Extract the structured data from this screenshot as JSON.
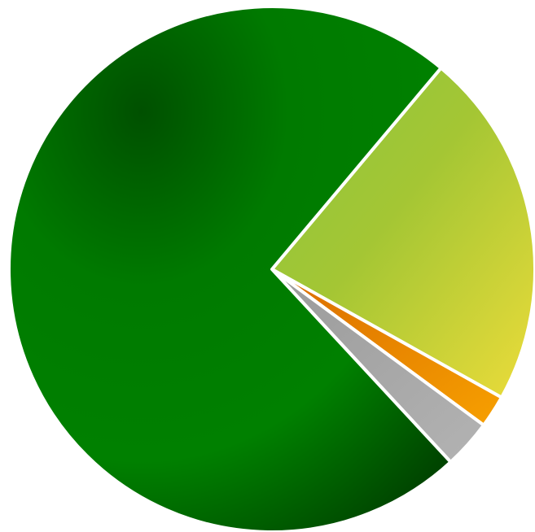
{
  "chart_data": {
    "type": "pie",
    "title": "",
    "legend": "none",
    "slices": [
      {
        "value": 22.0,
        "color": "#9dc530"
      },
      {
        "value": 2.0,
        "color": "#f39200"
      },
      {
        "value": 3.0,
        "color": "#a9a9a9"
      },
      {
        "value": 73.0,
        "color": "#007d00"
      }
    ],
    "start_angle_deg": -50,
    "gradients": {
      "green": [
        "#005000",
        "#008000",
        "#003f00"
      ],
      "lime": [
        "#8cc63f",
        "#9dc530",
        "#e6dc3a"
      ]
    }
  }
}
